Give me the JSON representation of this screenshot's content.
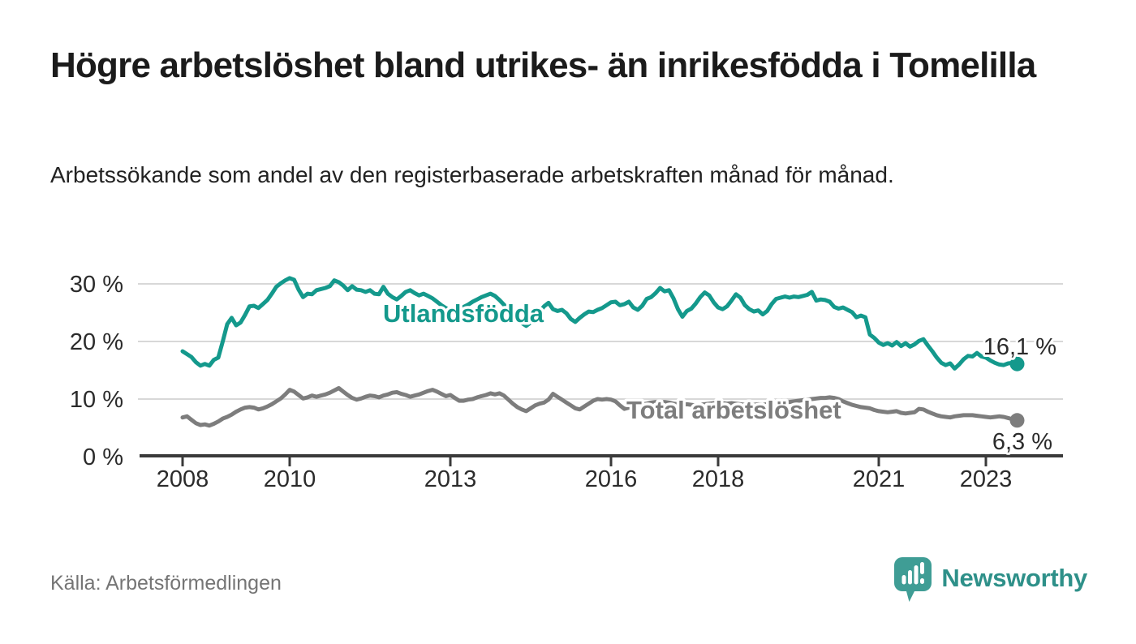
{
  "header": {
    "title": "Högre arbetslöshet bland utrikes- än inrikesfödda i Tomelilla",
    "subtitle": "Arbetssökande som andel av den registerbaserade arbetskraften månad för månad."
  },
  "footer": {
    "source": "Källa: Arbetsförmedlingen",
    "brand": "Newsworthy"
  },
  "colors": {
    "teal_line": "#14998c",
    "gray_line": "#7d7d7d",
    "axis": "#3a3a3a",
    "grid": "#d8d8d8",
    "brand_bubble": "#3f9d95",
    "brand_text": "#2e9089",
    "text_dark": "#1b1b1b"
  },
  "chart_data": {
    "type": "line",
    "title": "Högre arbetslöshet bland utrikes- än inrikesfödda i Tomelilla",
    "subtitle": "Arbetssökande som andel av den registerbaserade arbetskraften månad för månad.",
    "xlabel": "",
    "ylabel": "",
    "grid": true,
    "legend_position": "inline-labels",
    "x_range": [
      2007.2,
      2024.45
    ],
    "y_range": [
      0,
      32
    ],
    "x_ticks": [
      {
        "year": 2008,
        "label": "2008"
      },
      {
        "year": 2010,
        "label": "2010"
      },
      {
        "year": 2013,
        "label": "2013"
      },
      {
        "year": 2016,
        "label": "2016"
      },
      {
        "year": 2018,
        "label": "2018"
      },
      {
        "year": 2021,
        "label": "2021"
      },
      {
        "year": 2023,
        "label": "2023"
      }
    ],
    "y_ticks": [
      {
        "value": 0,
        "label": "0 %"
      },
      {
        "value": 10,
        "label": "10 %"
      },
      {
        "value": 20,
        "label": "20 %"
      },
      {
        "value": 30,
        "label": "30 %"
      }
    ],
    "series": [
      {
        "name": "Utlandsfödda",
        "color": "#14998c",
        "end_label": "16,1 %",
        "end_value": 16.1,
        "start_year": 2008,
        "points_per_year": 12,
        "values": [
          18.3,
          17.8,
          17.3,
          16.4,
          15.8,
          16.1,
          15.8,
          16.8,
          17.2,
          20.0,
          23.0,
          24.1,
          22.8,
          23.3,
          24.6,
          26.1,
          26.2,
          25.8,
          26.5,
          27.2,
          28.3,
          29.5,
          30.1,
          30.6,
          31.0,
          30.7,
          29.0,
          27.7,
          28.3,
          28.2,
          28.9,
          29.1,
          29.3,
          29.6,
          30.6,
          30.3,
          29.7,
          28.9,
          29.6,
          29.0,
          28.9,
          28.6,
          28.9,
          28.3,
          28.2,
          29.5,
          28.3,
          27.7,
          27.3,
          27.9,
          28.6,
          28.9,
          28.4,
          28.0,
          28.3,
          27.9,
          27.5,
          26.9,
          26.3,
          25.8,
          25.4,
          25.2,
          25.5,
          26.0,
          26.4,
          26.9,
          27.3,
          27.7,
          28.0,
          28.3,
          27.9,
          27.2,
          26.4,
          25.6,
          24.8,
          24.0,
          23.2,
          22.7,
          23.3,
          24.2,
          25.2,
          26.1,
          26.7,
          25.6,
          25.3,
          25.5,
          24.9,
          23.9,
          23.4,
          24.1,
          24.7,
          25.2,
          25.1,
          25.5,
          25.8,
          26.3,
          26.8,
          26.9,
          26.3,
          26.5,
          26.9,
          25.9,
          25.5,
          26.2,
          27.4,
          27.7,
          28.4,
          29.3,
          28.7,
          28.9,
          27.5,
          25.6,
          24.3,
          25.3,
          25.7,
          26.6,
          27.7,
          28.5,
          28.0,
          26.8,
          25.9,
          25.6,
          26.1,
          27.1,
          28.2,
          27.6,
          26.3,
          25.6,
          25.2,
          25.4,
          24.7,
          25.3,
          26.5,
          27.4,
          27.6,
          27.8,
          27.6,
          27.8,
          27.7,
          27.9,
          28.1,
          28.6,
          27.1,
          27.3,
          27.2,
          26.9,
          26.0,
          25.7,
          25.9,
          25.5,
          25.1,
          24.2,
          24.5,
          24.2,
          21.2,
          20.6,
          19.8,
          19.4,
          19.7,
          19.3,
          19.9,
          19.2,
          19.7,
          19.1,
          19.5,
          20.1,
          20.4,
          19.3,
          18.3,
          17.2,
          16.3,
          15.9,
          16.2,
          15.3,
          16.0,
          16.9,
          17.5,
          17.4,
          18.0,
          17.4,
          17.2,
          16.7,
          16.3,
          16.0,
          15.9,
          16.2,
          16.3,
          16.1
        ]
      },
      {
        "name": "Total arbetslöshet",
        "color": "#7d7d7d",
        "end_label": "6,3 %",
        "end_value": 6.3,
        "start_year": 2008,
        "points_per_year": 12,
        "values": [
          6.8,
          7.0,
          6.4,
          5.8,
          5.5,
          5.6,
          5.4,
          5.7,
          6.1,
          6.6,
          6.9,
          7.3,
          7.8,
          8.2,
          8.5,
          8.6,
          8.5,
          8.2,
          8.4,
          8.7,
          9.1,
          9.6,
          10.1,
          10.8,
          11.6,
          11.3,
          10.7,
          10.1,
          10.3,
          10.6,
          10.4,
          10.6,
          10.8,
          11.1,
          11.5,
          11.9,
          11.3,
          10.7,
          10.2,
          9.9,
          10.1,
          10.4,
          10.6,
          10.5,
          10.3,
          10.6,
          10.8,
          11.1,
          11.2,
          10.9,
          10.7,
          10.4,
          10.6,
          10.8,
          11.1,
          11.4,
          11.6,
          11.3,
          10.9,
          10.5,
          10.7,
          10.2,
          9.7,
          9.7,
          9.9,
          10.0,
          10.3,
          10.5,
          10.7,
          11.0,
          10.8,
          11.0,
          10.6,
          9.9,
          9.2,
          8.6,
          8.2,
          7.9,
          8.4,
          8.9,
          9.2,
          9.4,
          9.9,
          10.9,
          10.4,
          9.9,
          9.4,
          8.9,
          8.4,
          8.2,
          8.7,
          9.2,
          9.7,
          10.0,
          9.9,
          10.0,
          9.9,
          9.6,
          8.9,
          8.3,
          8.5,
          8.7,
          8.9,
          9.1,
          9.2,
          9.4,
          9.5,
          9.4,
          9.5,
          9.4,
          9.2,
          9.1,
          9.0,
          9.1,
          9.0,
          8.9,
          9.0,
          9.1,
          9.2,
          9.3,
          9.4,
          9.3,
          9.2,
          9.3,
          9.2,
          9.1,
          9.0,
          8.9,
          9.0,
          9.1,
          9.0,
          9.1,
          9.2,
          9.3,
          9.4,
          9.4,
          9.5,
          9.6,
          9.7,
          9.8,
          9.9,
          10.0,
          10.1,
          10.2,
          10.2,
          10.3,
          10.2,
          10.0,
          9.6,
          9.3,
          9.0,
          8.8,
          8.6,
          8.5,
          8.4,
          8.1,
          7.9,
          7.8,
          7.7,
          7.8,
          7.9,
          7.6,
          7.5,
          7.6,
          7.7,
          8.3,
          8.2,
          7.8,
          7.5,
          7.2,
          7.0,
          6.9,
          6.8,
          7.0,
          7.1,
          7.2,
          7.2,
          7.2,
          7.1,
          7.0,
          6.9,
          6.8,
          6.9,
          7.0,
          6.9,
          6.7,
          6.5,
          6.3
        ]
      }
    ]
  }
}
